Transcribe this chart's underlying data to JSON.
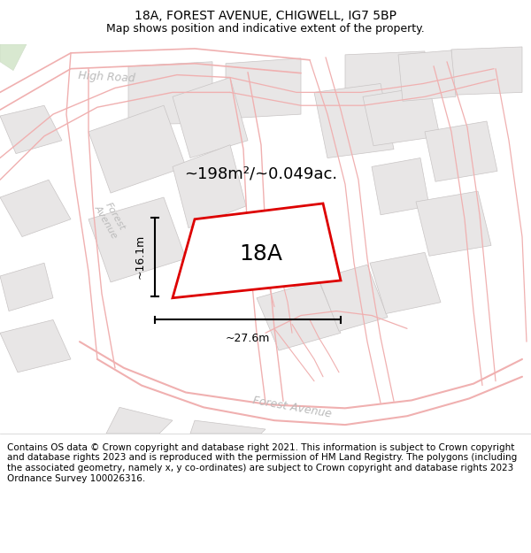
{
  "title": "18A, FOREST AVENUE, CHIGWELL, IG7 5BP",
  "subtitle": "Map shows position and indicative extent of the property.",
  "area_label": "~198m²/~0.049ac.",
  "plot_label": "18A",
  "width_label": "~27.6m",
  "height_label": "~16.1m",
  "footer": "Contains OS data © Crown copyright and database right 2021. This information is subject to Crown copyright and database rights 2023 and is reproduced with the permission of HM Land Registry. The polygons (including the associated geometry, namely x, y co-ordinates) are subject to Crown copyright and database rights 2023 Ordnance Survey 100026316.",
  "map_bg": "#ffffff",
  "block_color": "#e8e6e6",
  "block_edge": "#c8c4c4",
  "road_color": "#f0b0b0",
  "plot_edge_color": "#dd0000",
  "road_label_color": "#bbbbbb",
  "title_fontsize": 10,
  "subtitle_fontsize": 9,
  "footer_fontsize": 7.5,
  "label_fontsize": 13,
  "plot_fontsize": 18,
  "dim_fontsize": 9
}
